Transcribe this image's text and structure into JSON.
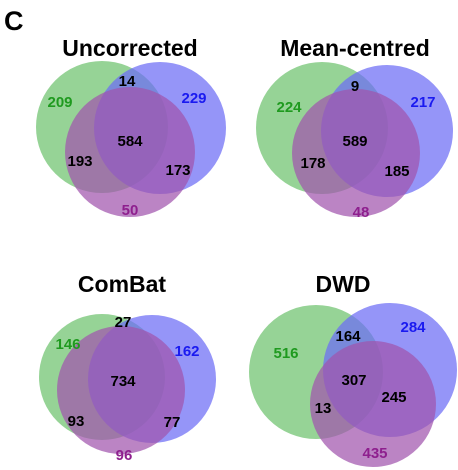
{
  "panel_label": "C",
  "colors": {
    "green": "#6ec26e",
    "blue": "#6c6cf5",
    "purple": "#a155ad",
    "label_green": "#1f9a1f",
    "label_blue": "#1a1af0",
    "label_purple": "#8e1f8e",
    "label_black": "#000000"
  },
  "diagrams": [
    {
      "title": "Uncorrected",
      "only_green": "209",
      "green_blue": "14",
      "only_blue": "229",
      "all_three": "584",
      "green_purple": "193",
      "blue_purple": "173",
      "only_purple": "50"
    },
    {
      "title": "Mean-centred",
      "only_green": "224",
      "green_blue": "9",
      "only_blue": "217",
      "all_three": "589",
      "green_purple": "178",
      "blue_purple": "185",
      "only_purple": "48"
    },
    {
      "title": "ComBat",
      "only_green": "146",
      "green_blue": "27",
      "only_blue": "162",
      "all_three": "734",
      "green_purple": "93",
      "blue_purple": "77",
      "only_purple": "96"
    },
    {
      "title": "DWD",
      "only_green": "516",
      "green_blue": "164",
      "only_blue": "284",
      "all_three": "307",
      "green_purple": "13",
      "blue_purple": "245",
      "only_purple": "435"
    }
  ]
}
